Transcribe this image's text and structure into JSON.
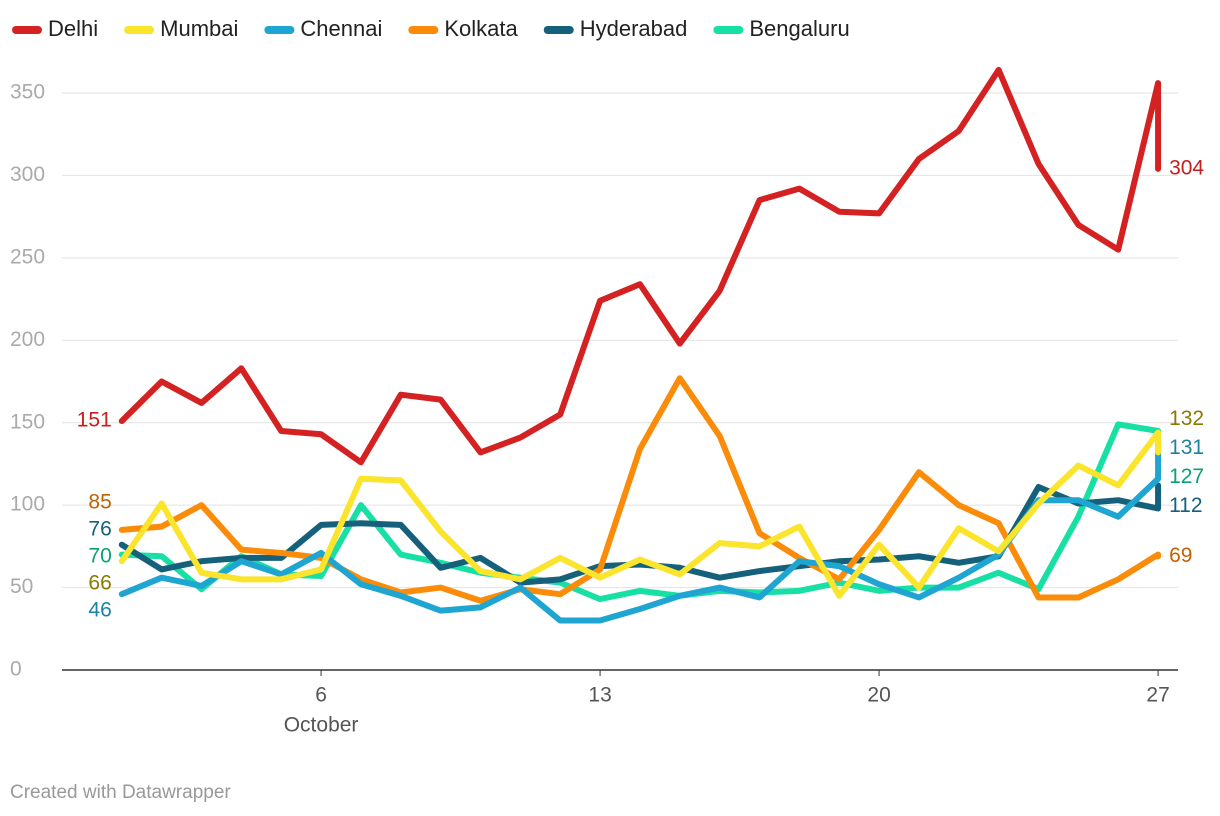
{
  "chart_data": {
    "type": "line",
    "x": [
      1,
      2,
      3,
      4,
      5,
      6,
      7,
      8,
      9,
      10,
      11,
      12,
      13,
      14,
      15,
      16,
      17,
      18,
      19,
      20,
      21,
      22,
      23,
      24,
      25,
      26,
      27,
      27
    ],
    "xlim": [
      -0.5,
      27.5
    ],
    "xticks": [
      6,
      13,
      20,
      27
    ],
    "x_sublabel": "October",
    "ylim": [
      0,
      350
    ],
    "yticks": [
      0,
      50,
      100,
      150,
      200,
      250,
      300,
      350
    ],
    "grid": true,
    "legend": "top-left",
    "footer": "Created with Datawrapper",
    "series": [
      {
        "name": "Delhi",
        "color": "#d42121",
        "label_color": "#c71e1d",
        "values": [
          151,
          175,
          162,
          183,
          145,
          143,
          126,
          167,
          164,
          132,
          141,
          155,
          224,
          234,
          198,
          230,
          285,
          292,
          278,
          277,
          310,
          327,
          364,
          307,
          270,
          255,
          356,
          304
        ]
      },
      {
        "name": "Mumbai",
        "color": "#fae42c",
        "label_color": "#8a7a00",
        "values": [
          66,
          101,
          59,
          55,
          55,
          61,
          116,
          115,
          84,
          60,
          55,
          68,
          56,
          67,
          58,
          77,
          75,
          87,
          45,
          76,
          50,
          86,
          72,
          101,
          124,
          112,
          144,
          132
        ]
      },
      {
        "name": "Chennai",
        "color": "#1ea5d2",
        "label_color": "#1d81a2",
        "values": [
          46,
          56,
          51,
          66,
          58,
          71,
          52,
          45,
          36,
          38,
          50,
          30,
          30,
          37,
          45,
          50,
          44,
          66,
          63,
          52,
          44,
          56,
          70,
          103,
          103,
          93,
          116,
          131
        ]
      },
      {
        "name": "Kolkata",
        "color": "#fb8c0a",
        "label_color": "#c16200",
        "values": [
          85,
          87,
          100,
          73,
          71,
          68,
          55,
          47,
          50,
          42,
          49,
          46,
          61,
          134,
          177,
          142,
          83,
          68,
          55,
          85,
          120,
          100,
          89,
          44,
          44,
          55,
          70,
          69
        ]
      },
      {
        "name": "Hyderabad",
        "color": "#15607a",
        "label_color": "#15607a",
        "values": [
          76,
          61,
          66,
          68,
          68,
          88,
          89,
          88,
          62,
          68,
          53,
          55,
          63,
          64,
          62,
          56,
          60,
          63,
          66,
          67,
          69,
          65,
          69,
          111,
          101,
          103,
          98,
          112
        ]
      },
      {
        "name": "Bengaluru",
        "color": "#18e0a5",
        "label_color": "#09a276",
        "values": [
          70,
          69,
          49,
          69,
          58,
          57,
          100,
          70,
          65,
          59,
          56,
          53,
          43,
          48,
          45,
          48,
          47,
          48,
          53,
          48,
          50,
          50,
          59,
          49,
          93,
          149,
          145,
          127
        ]
      }
    ]
  }
}
